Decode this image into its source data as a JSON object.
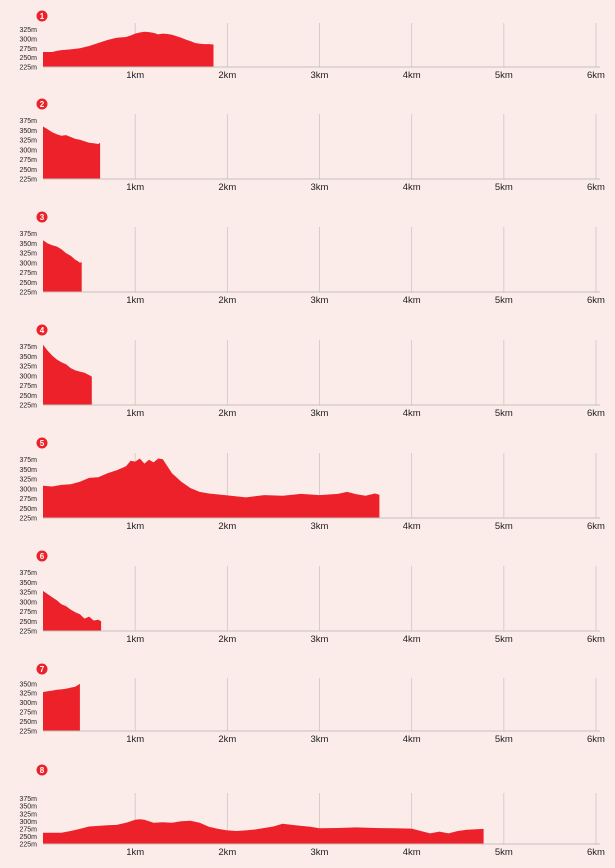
{
  "style": {
    "background": "#fbecea",
    "fill": "#ec2129",
    "grid": "#cfc4c3",
    "axis": "#c9bfbe",
    "badge": "#ec2129"
  },
  "x_ticks": [
    "1km",
    "2km",
    "3km",
    "4km",
    "5km",
    "6km"
  ],
  "chart_data": [
    {
      "type": "area",
      "badge": "1",
      "xlabel": "",
      "ylabel": "",
      "xlim": [
        0,
        6
      ],
      "ylim": [
        225,
        337
      ],
      "y_ticks": [
        "325m",
        "300m",
        "275m",
        "250m",
        "225m"
      ],
      "y_tick_values": [
        325,
        300,
        275,
        250,
        225
      ],
      "grid": true,
      "x": [
        0,
        0.1,
        0.15,
        0.2,
        0.3,
        0.4,
        0.45,
        0.5,
        0.55,
        0.6,
        0.65,
        0.7,
        0.75,
        0.8,
        0.9,
        0.95,
        1.0,
        1.05,
        1.1,
        1.15,
        1.2,
        1.25,
        1.3,
        1.35,
        1.4,
        1.45,
        1.5,
        1.55,
        1.6,
        1.65,
        1.7,
        1.75,
        1.8,
        1.85
      ],
      "y": [
        265,
        265,
        268,
        270,
        272,
        275,
        278,
        281,
        285,
        289,
        293,
        297,
        300,
        303,
        305,
        309,
        314,
        317,
        319,
        318,
        316,
        312,
        314,
        313,
        311,
        307,
        303,
        298,
        294,
        289,
        287,
        286,
        286,
        285
      ]
    },
    {
      "type": "area",
      "badge": "2",
      "xlabel": "",
      "ylabel": "",
      "xlim": [
        0,
        6
      ],
      "ylim": [
        225,
        387
      ],
      "y_ticks": [
        "375m",
        "350m",
        "325m",
        "300m",
        "275m",
        "250m",
        "225m"
      ],
      "y_tick_values": [
        375,
        350,
        325,
        300,
        275,
        250,
        225
      ],
      "grid": true,
      "x": [
        0,
        0.05,
        0.1,
        0.15,
        0.2,
        0.25,
        0.3,
        0.35,
        0.4,
        0.45,
        0.5,
        0.55,
        0.6,
        0.62
      ],
      "y": [
        360,
        353,
        345,
        340,
        336,
        338,
        333,
        328,
        326,
        322,
        318,
        317,
        315,
        318
      ]
    },
    {
      "type": "area",
      "badge": "3",
      "xlabel": "",
      "ylabel": "",
      "xlim": [
        0,
        6
      ],
      "ylim": [
        225,
        387
      ],
      "y_ticks": [
        "375m",
        "350m",
        "325m",
        "300m",
        "275m",
        "250m",
        "225m"
      ],
      "y_tick_values": [
        375,
        350,
        325,
        300,
        275,
        250,
        225
      ],
      "grid": true,
      "x": [
        0,
        0.05,
        0.1,
        0.15,
        0.2,
        0.25,
        0.3,
        0.35,
        0.38,
        0.4,
        0.42
      ],
      "y": [
        358,
        350,
        345,
        342,
        335,
        325,
        318,
        308,
        304,
        300,
        302
      ]
    },
    {
      "type": "area",
      "badge": "4",
      "xlabel": "",
      "ylabel": "",
      "xlim": [
        0,
        6
      ],
      "ylim": [
        225,
        387
      ],
      "y_ticks": [
        "375m",
        "350m",
        "325m",
        "300m",
        "275m",
        "250m",
        "225m"
      ],
      "y_tick_values": [
        375,
        350,
        325,
        300,
        275,
        250,
        225
      ],
      "grid": true,
      "x": [
        0,
        0.05,
        0.1,
        0.15,
        0.2,
        0.25,
        0.3,
        0.35,
        0.4,
        0.45,
        0.5,
        0.53
      ],
      "y": [
        380,
        365,
        352,
        342,
        335,
        330,
        320,
        314,
        311,
        308,
        302,
        298
      ]
    },
    {
      "type": "area",
      "badge": "5",
      "xlabel": "",
      "ylabel": "",
      "xlim": [
        0,
        6
      ],
      "ylim": [
        225,
        387
      ],
      "y_ticks": [
        "375m",
        "350m",
        "325m",
        "300m",
        "275m",
        "250m",
        "225m"
      ],
      "y_tick_values": [
        375,
        350,
        325,
        300,
        275,
        250,
        225
      ],
      "grid": true,
      "x": [
        0,
        0.1,
        0.2,
        0.3,
        0.4,
        0.5,
        0.6,
        0.7,
        0.8,
        0.9,
        0.95,
        1.0,
        1.05,
        1.1,
        1.15,
        1.2,
        1.25,
        1.3,
        1.4,
        1.5,
        1.6,
        1.7,
        1.8,
        2.0,
        2.2,
        2.4,
        2.6,
        2.8,
        3.0,
        3.2,
        3.3,
        3.4,
        3.5,
        3.6,
        3.65
      ],
      "y": [
        308,
        306,
        310,
        312,
        318,
        328,
        330,
        340,
        348,
        358,
        372,
        370,
        378,
        365,
        375,
        368,
        378,
        376,
        340,
        318,
        302,
        292,
        288,
        283,
        278,
        284,
        282,
        287,
        284,
        287,
        292,
        286,
        282,
        288,
        285
      ]
    },
    {
      "type": "area",
      "badge": "6",
      "xlabel": "",
      "ylabel": "",
      "xlim": [
        0,
        6
      ],
      "ylim": [
        225,
        387
      ],
      "y_ticks": [
        "375m",
        "350m",
        "325m",
        "300m",
        "275m",
        "250m",
        "225m"
      ],
      "y_tick_values": [
        375,
        350,
        325,
        300,
        275,
        250,
        225
      ],
      "grid": true,
      "x": [
        0,
        0.05,
        0.1,
        0.15,
        0.2,
        0.25,
        0.3,
        0.35,
        0.4,
        0.45,
        0.5,
        0.55,
        0.6,
        0.63
      ],
      "y": [
        328,
        320,
        312,
        304,
        294,
        289,
        280,
        273,
        268,
        257,
        262,
        252,
        254,
        250
      ]
    },
    {
      "type": "area",
      "badge": "7",
      "xlabel": "",
      "ylabel": "",
      "xlim": [
        0,
        6
      ],
      "ylim": [
        225,
        360
      ],
      "y_ticks": [
        "350m",
        "325m",
        "300m",
        "275m",
        "250m",
        "225m"
      ],
      "y_tick_values": [
        350,
        325,
        300,
        275,
        250,
        225
      ],
      "grid": true,
      "x": [
        0,
        0.05,
        0.1,
        0.15,
        0.2,
        0.25,
        0.3,
        0.35,
        0.4
      ],
      "y": [
        328,
        330,
        332,
        334,
        335,
        337,
        340,
        342,
        350
      ]
    },
    {
      "type": "area",
      "badge": "8",
      "xlabel": "",
      "ylabel": "",
      "xlim": [
        0,
        6
      ],
      "ylim": [
        225,
        387
      ],
      "y_ticks": [
        "375m",
        "350m",
        "325m",
        "300m",
        "275m",
        "250m",
        "225m"
      ],
      "y_tick_values": [
        375,
        350,
        325,
        300,
        275,
        250,
        225
      ],
      "grid": true,
      "x": [
        0,
        0.2,
        0.3,
        0.4,
        0.5,
        0.6,
        0.7,
        0.8,
        0.9,
        1.0,
        1.05,
        1.1,
        1.2,
        1.3,
        1.4,
        1.5,
        1.6,
        1.7,
        1.8,
        1.9,
        2.0,
        2.1,
        2.2,
        2.3,
        2.4,
        2.5,
        2.6,
        2.7,
        2.8,
        2.9,
        3.0,
        3.2,
        3.4,
        3.6,
        3.8,
        4.0,
        4.1,
        4.2,
        4.3,
        4.4,
        4.5,
        4.6,
        4.7,
        4.78
      ],
      "y": [
        262,
        262,
        268,
        275,
        283,
        285,
        287,
        288,
        295,
        305,
        307,
        305,
        295,
        297,
        295,
        300,
        302,
        295,
        282,
        275,
        270,
        268,
        270,
        273,
        278,
        283,
        292,
        288,
        285,
        282,
        277,
        278,
        280,
        278,
        277,
        276,
        268,
        260,
        266,
        260,
        268,
        272,
        274,
        275
      ]
    }
  ]
}
